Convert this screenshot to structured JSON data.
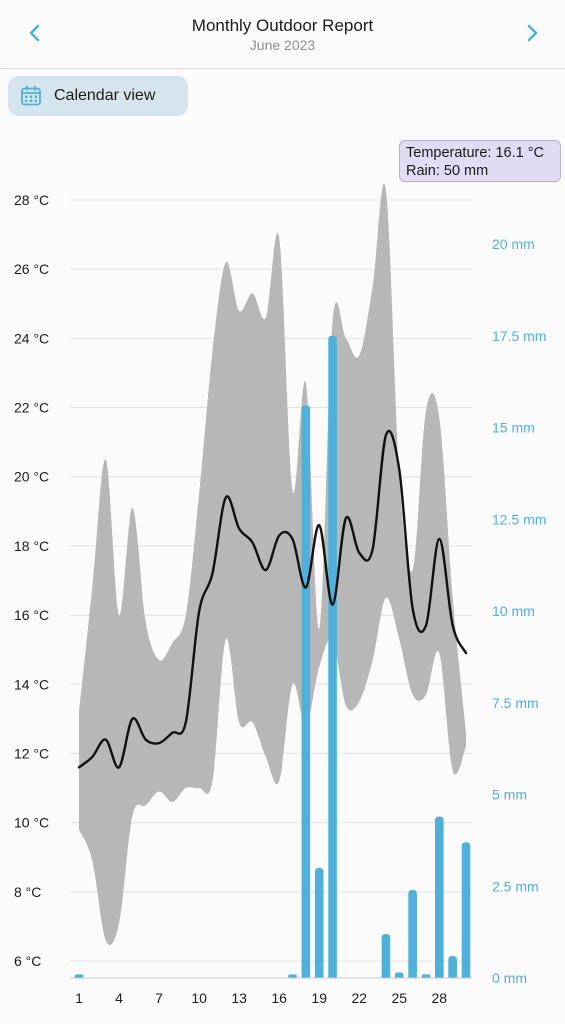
{
  "header": {
    "title": "Monthly Outdoor Report",
    "subtitle": "June 2023",
    "prev_icon": "chevron-left-icon",
    "next_icon": "chevron-right-icon"
  },
  "toolbar": {
    "calendar_label": "Calendar view",
    "calendar_icon": "calendar-icon"
  },
  "tooltip": {
    "temperature_line": "Temperature: 16.1 °C",
    "rain_line": "Rain: 50 mm"
  },
  "colors": {
    "accent": "#4fb1d9",
    "band": "#b7b7b8",
    "line": "#111111",
    "tooltip_bg": "#e1dbf3"
  },
  "chart_data": {
    "type": "bar",
    "x_ticks": [
      "1",
      "4",
      "7",
      "10",
      "13",
      "16",
      "19",
      "22",
      "25",
      "28"
    ],
    "y_left_ticks": [
      "6 °C",
      "8 °C",
      "10 °C",
      "12 °C",
      "14 °C",
      "16 °C",
      "18 °C",
      "20 °C",
      "22 °C",
      "24 °C",
      "26 °C",
      "28 °C"
    ],
    "y_right_ticks": [
      "0 mm",
      "2.5 mm",
      "5 mm",
      "7.5 mm",
      "10 mm",
      "12.5 mm",
      "15 mm",
      "17.5 mm",
      "20 mm"
    ],
    "ylim_left": [
      5.5,
      28.5
    ],
    "ylim_right": [
      0,
      21.5
    ],
    "x": [
      1,
      2,
      3,
      4,
      5,
      6,
      7,
      8,
      9,
      10,
      11,
      12,
      13,
      14,
      15,
      16,
      17,
      18,
      19,
      20,
      21,
      22,
      23,
      24,
      25,
      26,
      27,
      28,
      29,
      30
    ],
    "series": [
      {
        "type": "area",
        "upper": [
          13.2,
          16.8,
          20.5,
          16.0,
          19.1,
          15.8,
          14.7,
          15.2,
          16.0,
          19.5,
          23.6,
          26.2,
          24.8,
          25.3,
          24.6,
          26.9,
          19.6,
          22.7,
          15.6,
          24.5,
          24.0,
          23.5,
          25.5,
          28.3,
          20.0,
          17.3,
          21.9,
          21.7,
          16.5,
          12.6
        ],
        "lower": [
          9.8,
          8.9,
          6.6,
          7.1,
          10.2,
          10.5,
          10.9,
          10.6,
          11.0,
          11.0,
          11.2,
          15.3,
          12.9,
          12.9,
          11.9,
          11.2,
          14.0,
          12.8,
          14.5,
          15.3,
          13.4,
          13.5,
          14.7,
          16.5,
          15.3,
          13.7,
          13.7,
          14.9,
          11.5,
          12.2
        ]
      },
      {
        "type": "line",
        "values": [
          11.6,
          11.9,
          12.4,
          11.6,
          13.0,
          12.4,
          12.3,
          12.6,
          12.9,
          16.1,
          17.2,
          19.4,
          18.5,
          18.1,
          17.3,
          18.3,
          18.2,
          16.8,
          18.6,
          16.3,
          18.8,
          17.8,
          17.9,
          21.2,
          20.2,
          16.2,
          15.7,
          18.2,
          15.7,
          14.9
        ]
      },
      {
        "type": "bar",
        "unit": "mm",
        "values": [
          0.1,
          0,
          0,
          0,
          0,
          0,
          0,
          0,
          0,
          0,
          0,
          0,
          0,
          0,
          0,
          0,
          0.1,
          15.6,
          3.0,
          17.5,
          0,
          0,
          0,
          1.2,
          0.15,
          2.4,
          0.1,
          4.4,
          0.6,
          3.7
        ]
      }
    ]
  }
}
